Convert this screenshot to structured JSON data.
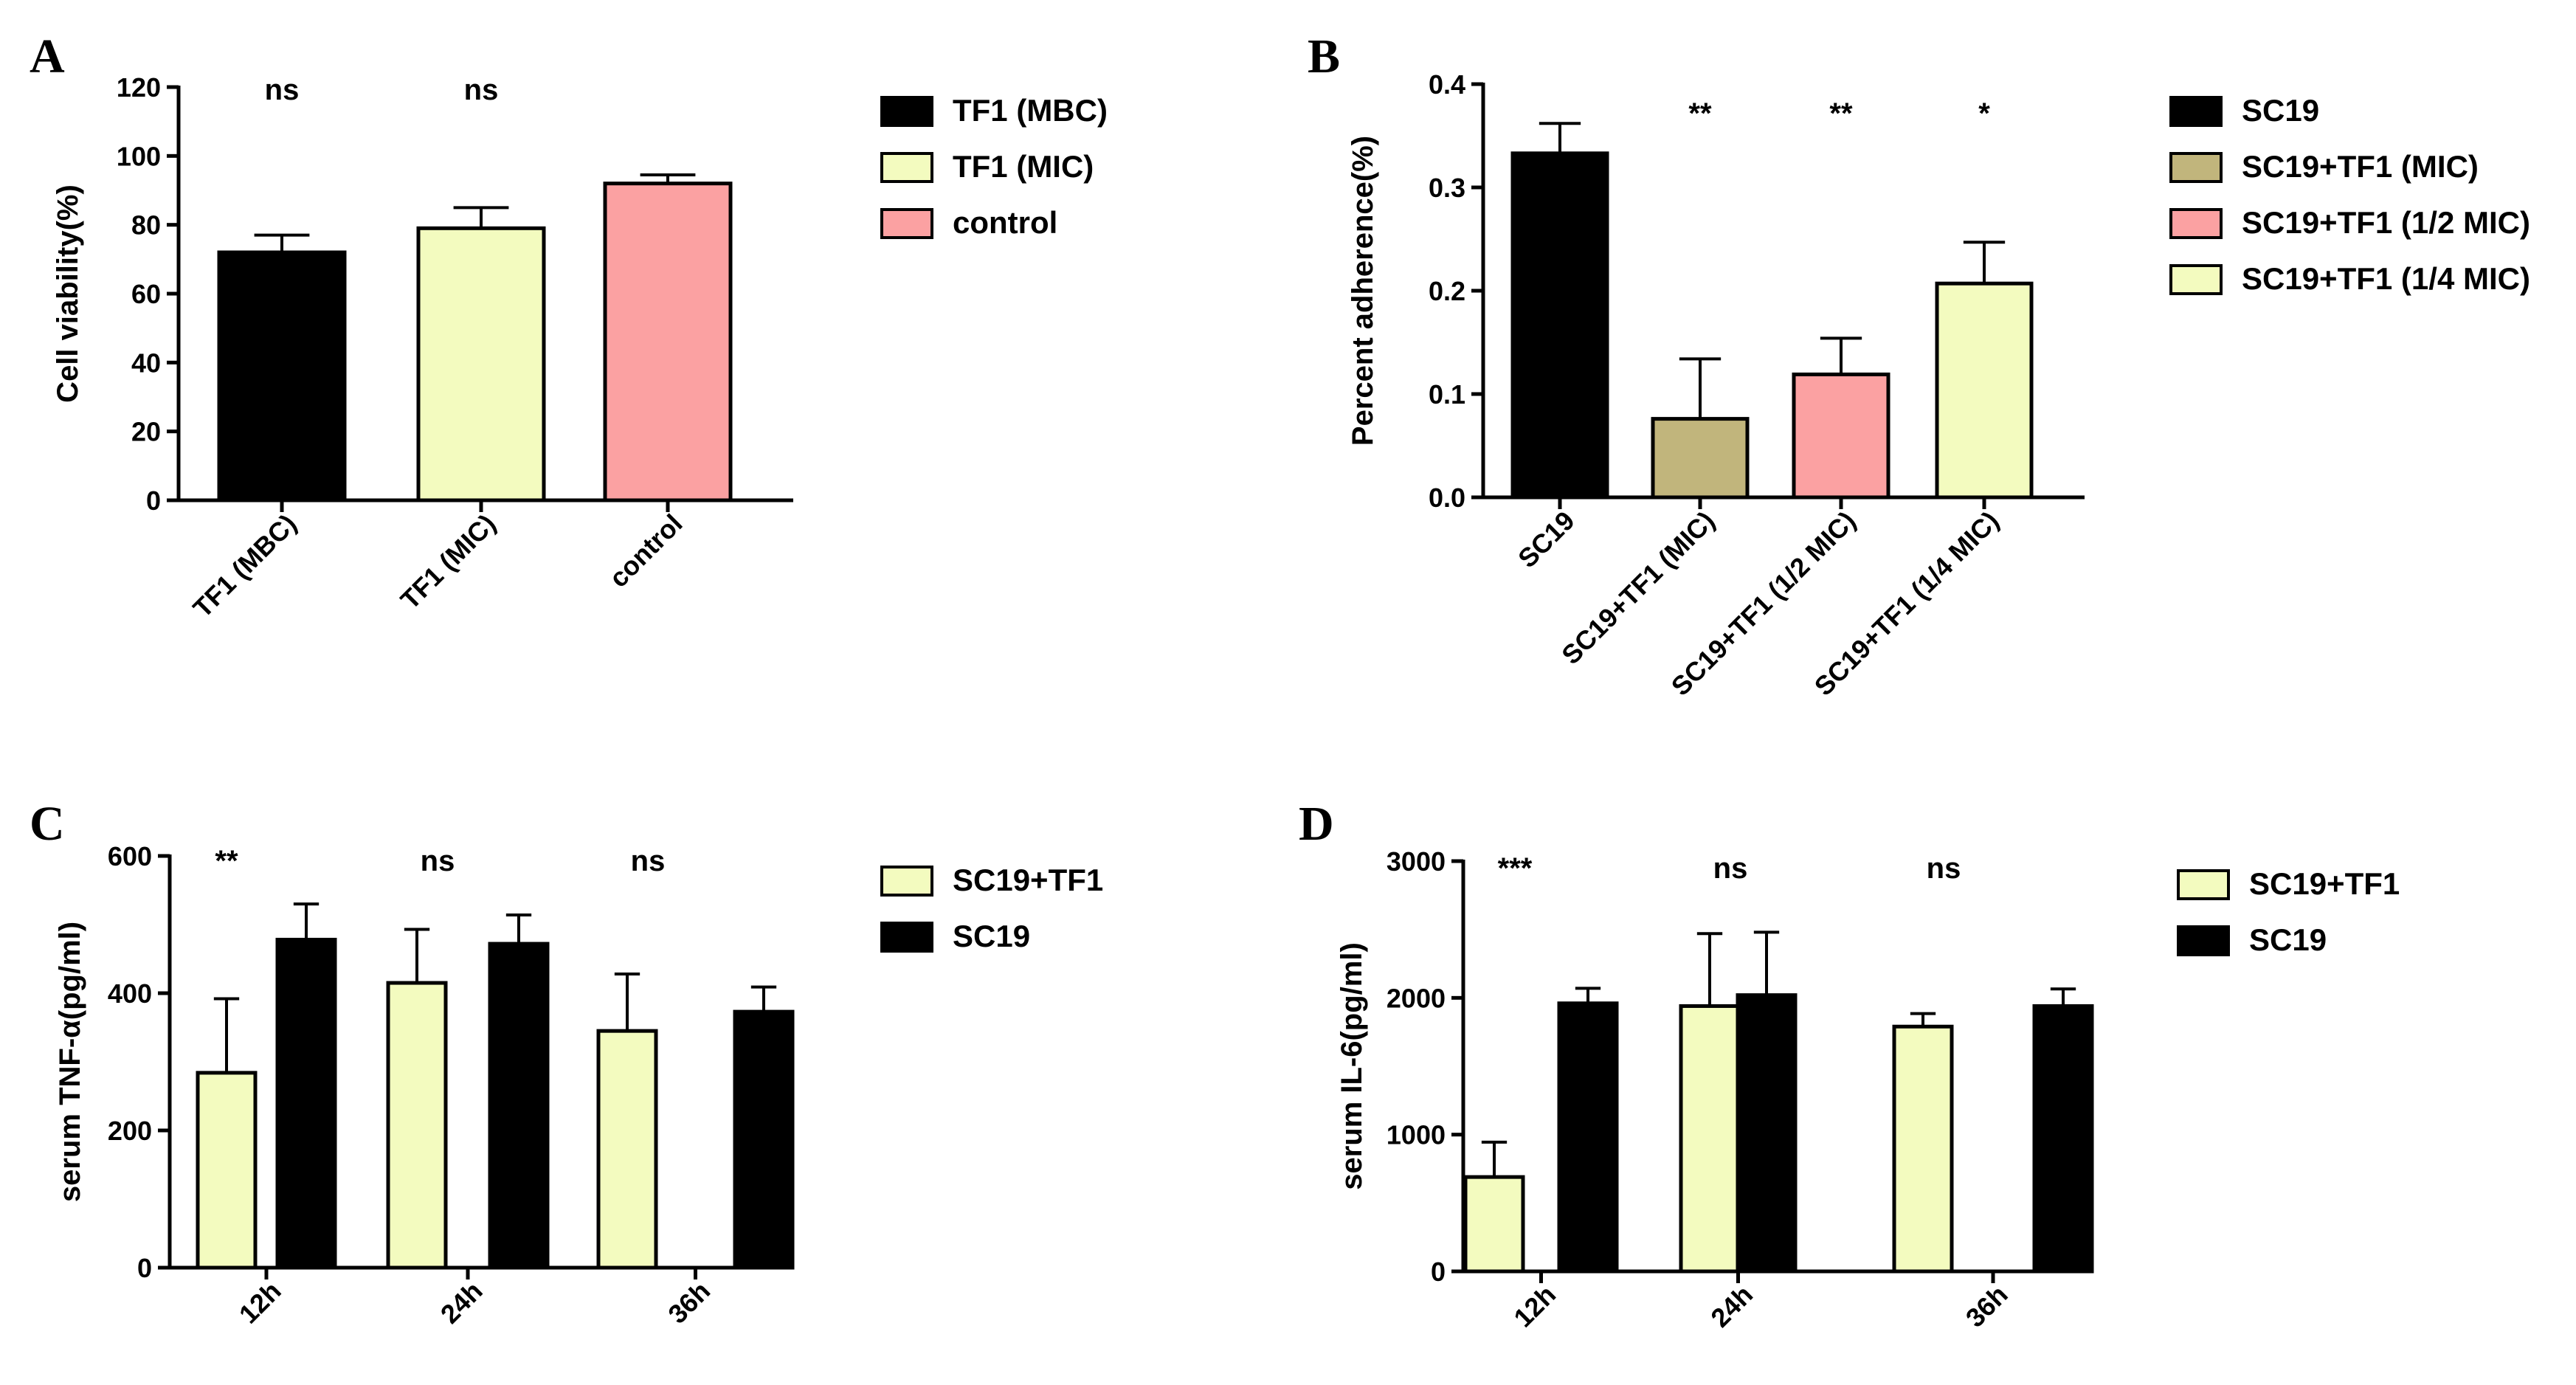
{
  "chart_data": [
    {
      "panel": "A",
      "type": "bar",
      "ylabel": "Cell viability(%)",
      "ylim": [
        0,
        120
      ],
      "yticks": [
        0,
        20,
        40,
        60,
        80,
        100,
        120
      ],
      "categories": [
        "TF1 (MBC)",
        "TF1 (MIC)",
        "control"
      ],
      "values": [
        72,
        79,
        92
      ],
      "errors": [
        5,
        6,
        2.5
      ],
      "colors": [
        "#000000",
        "#f3fbbf",
        "#fba1a2"
      ],
      "significance": [
        "ns",
        "ns",
        ""
      ],
      "legend": [
        {
          "label": "TF1 (MBC)",
          "color": "#000000"
        },
        {
          "label": "TF1 (MIC)",
          "color": "#f3fbbf"
        },
        {
          "label": "control",
          "color": "#fba1a2"
        }
      ]
    },
    {
      "panel": "B",
      "type": "bar",
      "ylabel": "Percent adherence(%)",
      "ylim": [
        0,
        0.4
      ],
      "yticks": [
        "0.0",
        "0.1",
        "0.2",
        "0.3",
        "0.4"
      ],
      "categories": [
        "SC19",
        "SC19+TF1 (MIC)",
        "SC19+TF1 (1/2 MIC)",
        "SC19+TF1 (1/4 MIC)"
      ],
      "values": [
        0.333,
        0.076,
        0.119,
        0.207
      ],
      "errors": [
        0.029,
        0.058,
        0.035,
        0.04
      ],
      "colors": [
        "#000000",
        "#c1b57c",
        "#fba1a2",
        "#f3fbbf"
      ],
      "significance": [
        "",
        "**",
        "**",
        "*"
      ],
      "legend": [
        {
          "label": "SC19",
          "color": "#000000"
        },
        {
          "label": "SC19+TF1 (MIC)",
          "color": "#c1b57c"
        },
        {
          "label": "SC19+TF1 (1/2 MIC)",
          "color": "#fba1a2"
        },
        {
          "label": "SC19+TF1 (1/4 MIC)",
          "color": "#f3fbbf"
        }
      ]
    },
    {
      "panel": "C",
      "type": "bar",
      "ylabel": "serum TNF-α(pg/ml)",
      "ylim": [
        0,
        600
      ],
      "yticks": [
        0,
        200,
        400,
        600
      ],
      "categories": [
        "12h",
        "24h",
        "36h"
      ],
      "series": [
        {
          "name": "SC19+TF1",
          "color": "#f3fbbf",
          "values": [
            284,
            415,
            345
          ],
          "errors": [
            108,
            78,
            83
          ]
        },
        {
          "name": "SC19",
          "color": "#000000",
          "values": [
            478,
            472,
            373
          ],
          "errors": [
            52,
            42,
            36
          ]
        }
      ],
      "significance": [
        "**",
        "ns",
        "ns"
      ]
    },
    {
      "panel": "D",
      "type": "bar",
      "ylabel": "serum IL-6(pg/ml)",
      "ylim": [
        0,
        3000
      ],
      "yticks": [
        0,
        1000,
        2000,
        3000
      ],
      "categories": [
        "12h",
        "24h",
        "36h"
      ],
      "series": [
        {
          "name": "SC19+TF1",
          "color": "#f3fbbf",
          "values": [
            690,
            1940,
            1790
          ],
          "errors": [
            255,
            530,
            95
          ]
        },
        {
          "name": "SC19",
          "color": "#000000",
          "values": [
            1960,
            2020,
            1940
          ],
          "errors": [
            110,
            460,
            125
          ]
        }
      ],
      "significance": [
        "***",
        "ns",
        "ns"
      ]
    }
  ]
}
